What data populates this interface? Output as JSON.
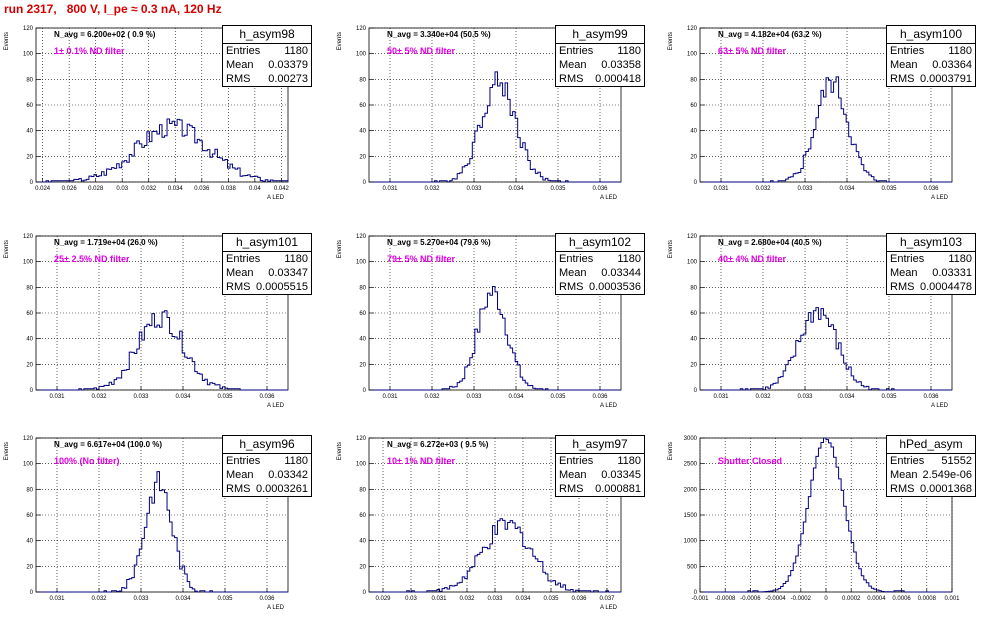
{
  "page": {
    "title": "run 2317,   800 V, I_pe ≈ 0.3 nA, 120 Hz"
  },
  "chart_data": [
    {
      "type": "bar",
      "name": "h_asym98",
      "hist_name": "h_asym98",
      "entries": "1180",
      "mean": "0.03379",
      "rms": "0.00273",
      "n_avg": "N_avg = 6.200e+02 ( 0.9 %)",
      "filter": "1± 0.1% ND filter",
      "xlim": [
        0.0235,
        0.0425
      ],
      "ylim": [
        0,
        120
      ],
      "xticks": [
        0.024,
        0.026,
        0.028,
        0.03,
        0.032,
        0.034,
        0.036,
        0.038,
        0.04,
        0.042
      ],
      "xtick_labels": [
        "0.024",
        "0.026",
        "0.028",
        "0.03",
        "0.032",
        "0.034",
        "0.036",
        "0.038",
        "0.04",
        "0.042"
      ],
      "yticks": [
        0,
        20,
        40,
        60,
        80,
        100,
        120
      ],
      "ylabel": "Events",
      "xlabel": "A_LED",
      "center": 0.0338,
      "sigma": 0.00273,
      "peak": 43
    },
    {
      "type": "bar",
      "name": "h_asym99",
      "hist_name": "h_asym99",
      "entries": "1180",
      "mean": "0.03358",
      "rms": "0.000418",
      "n_avg": "N_avg = 3.340e+04 (50.5 %)",
      "filter": "50± 5% ND filter",
      "xlim": [
        0.0305,
        0.0365
      ],
      "ylim": [
        0,
        120
      ],
      "xticks": [
        0.031,
        0.032,
        0.033,
        0.034,
        0.035,
        0.036
      ],
      "xtick_labels": [
        "0.031",
        "0.032",
        "0.033",
        "0.034",
        "0.035",
        "0.036"
      ],
      "yticks": [
        0,
        20,
        40,
        60,
        80,
        100,
        120
      ],
      "ylabel": "Events",
      "xlabel": "A_LED",
      "center": 0.03358,
      "sigma": 0.000418,
      "peak": 78
    },
    {
      "type": "bar",
      "name": "h_asym100",
      "hist_name": "h_asym100",
      "entries": "1180",
      "mean": "0.03364",
      "rms": "0.0003791",
      "n_avg": "N_avg = 4.182e+04 (63.2 %)",
      "filter": "63± 5% ND filter",
      "xlim": [
        0.0305,
        0.0365
      ],
      "ylim": [
        0,
        120
      ],
      "xticks": [
        0.031,
        0.032,
        0.033,
        0.034,
        0.035,
        0.036
      ],
      "xtick_labels": [
        "0.031",
        "0.032",
        "0.033",
        "0.034",
        "0.035",
        "0.036"
      ],
      "yticks": [
        0,
        20,
        40,
        60,
        80,
        100,
        120
      ],
      "ylabel": "Events",
      "xlabel": "A_LED",
      "center": 0.03364,
      "sigma": 0.0003791,
      "peak": 78
    },
    {
      "type": "bar",
      "name": "h_asym101",
      "hist_name": "h_asym101",
      "entries": "1180",
      "mean": "0.03347",
      "rms": "0.0005515",
      "n_avg": "N_avg = 1.719e+04 (26.0 %)",
      "filter": "25± 2.5% ND filter",
      "xlim": [
        0.0305,
        0.0365
      ],
      "ylim": [
        0,
        120
      ],
      "xticks": [
        0.031,
        0.032,
        0.033,
        0.034,
        0.035,
        0.036
      ],
      "xtick_labels": [
        "0.031",
        "0.032",
        "0.033",
        "0.034",
        "0.035",
        "0.036"
      ],
      "yticks": [
        0,
        20,
        40,
        60,
        80,
        100,
        120
      ],
      "ylabel": "Events",
      "xlabel": "A_LED",
      "center": 0.03347,
      "sigma": 0.0005515,
      "peak": 57
    },
    {
      "type": "bar",
      "name": "h_asym102",
      "hist_name": "h_asym102",
      "entries": "1180",
      "mean": "0.03344",
      "rms": "0.0003536",
      "n_avg": "N_avg = 5.270e+04 (79.6 %)",
      "filter": "79± 5% ND filter",
      "xlim": [
        0.0305,
        0.0365
      ],
      "ylim": [
        0,
        120
      ],
      "xticks": [
        0.031,
        0.032,
        0.033,
        0.034,
        0.035,
        0.036
      ],
      "xtick_labels": [
        "0.031",
        "0.032",
        "0.033",
        "0.034",
        "0.035",
        "0.036"
      ],
      "yticks": [
        0,
        20,
        40,
        60,
        80,
        100,
        120
      ],
      "ylabel": "Events",
      "xlabel": "A_LED",
      "center": 0.03344,
      "sigma": 0.0003536,
      "peak": 76
    },
    {
      "type": "bar",
      "name": "h_asym103",
      "hist_name": "h_asym103",
      "entries": "1180",
      "mean": "0.03331",
      "rms": "0.0004478",
      "n_avg": "N_avg = 2.680e+04 (40.5 %)",
      "filter": "40± 4% ND filter",
      "xlim": [
        0.0305,
        0.0365
      ],
      "ylim": [
        0,
        120
      ],
      "xticks": [
        0.031,
        0.032,
        0.033,
        0.034,
        0.035,
        0.036
      ],
      "xtick_labels": [
        "0.031",
        "0.032",
        "0.033",
        "0.034",
        "0.035",
        "0.036"
      ],
      "yticks": [
        0,
        20,
        40,
        60,
        80,
        100,
        120
      ],
      "ylabel": "Events",
      "xlabel": "A_LED",
      "center": 0.03331,
      "sigma": 0.0004478,
      "peak": 62
    },
    {
      "type": "bar",
      "name": "h_asym96",
      "hist_name": "h_asym96",
      "entries": "1180",
      "mean": "0.03342",
      "rms": "0.0003261",
      "n_avg": "N_avg = 6.617e+04 (100.0 %)",
      "filter": "100% (No filter)",
      "xlim": [
        0.0305,
        0.0365
      ],
      "ylim": [
        0,
        120
      ],
      "xticks": [
        0.031,
        0.032,
        0.033,
        0.034,
        0.035,
        0.036
      ],
      "xtick_labels": [
        "0.031",
        "0.032",
        "0.033",
        "0.034",
        "0.035",
        "0.036"
      ],
      "yticks": [
        0,
        20,
        40,
        60,
        80,
        100,
        120
      ],
      "ylabel": "Events",
      "xlabel": "A_LED",
      "center": 0.03342,
      "sigma": 0.0003261,
      "peak": 85
    },
    {
      "type": "bar",
      "name": "h_asym97",
      "hist_name": "h_asym97",
      "entries": "1180",
      "mean": "0.03345",
      "rms": "0.000881",
      "n_avg": "N_avg = 6.272e+03 ( 9.5 %)",
      "filter": "10± 1% ND filter",
      "xlim": [
        0.0285,
        0.0375
      ],
      "ylim": [
        0,
        120
      ],
      "xticks": [
        0.029,
        0.03,
        0.031,
        0.032,
        0.033,
        0.034,
        0.035,
        0.036,
        0.037
      ],
      "xtick_labels": [
        "0.029",
        "0.03",
        "0.031",
        "0.032",
        "0.033",
        "0.034",
        "0.035",
        "0.036",
        "0.037"
      ],
      "yticks": [
        0,
        20,
        40,
        60,
        80,
        100,
        120
      ],
      "ylabel": "Events",
      "xlabel": "A_LED",
      "center": 0.03345,
      "sigma": 0.000881,
      "peak": 52
    },
    {
      "type": "bar",
      "name": "hPed_asym",
      "hist_name": "hPed_asym",
      "entries": "51552",
      "mean": "2.549e-06",
      "rms": "0.0001368",
      "n_avg": "",
      "filter": "Shutter Closed",
      "xlim": [
        -0.001,
        0.001
      ],
      "ylim": [
        0,
        3000
      ],
      "xticks": [
        -0.001,
        -0.0008,
        -0.0006,
        -0.0004,
        -0.0002,
        0,
        0.0002,
        0.0004,
        0.0006,
        0.0008,
        0.001
      ],
      "xtick_labels": [
        "-0.001",
        "-0.0008",
        "-0.0006",
        "-0.0004",
        "-0.0002",
        "0",
        "0.0002",
        "0.0004",
        "0.0006",
        "0.0008",
        "0.001"
      ],
      "yticks": [
        0,
        500,
        1000,
        1500,
        2000,
        2500,
        3000
      ],
      "ylabel": "Events",
      "xlabel": "",
      "center": 2.5e-06,
      "sigma": 0.0001368,
      "peak": 3000
    }
  ]
}
